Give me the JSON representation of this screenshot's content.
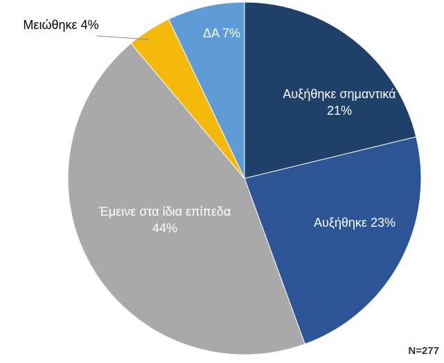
{
  "chart_data": {
    "type": "pie",
    "categories": [
      "Αυξήθηκε σημαντικά",
      "Αυξήθηκε",
      "Έμεινε στα ίδια επίπεδα",
      "Μειώθηκε",
      "ΔΑ"
    ],
    "values": [
      21,
      23,
      44,
      4,
      7
    ],
    "value_labels": [
      "21%",
      "23%",
      "44%",
      "4%",
      "7%"
    ],
    "colors": [
      "#1f4068",
      "#2d5596",
      "#a9a9a9",
      "#f4b90a",
      "#5f9bd6"
    ],
    "annotation": "N=277"
  }
}
